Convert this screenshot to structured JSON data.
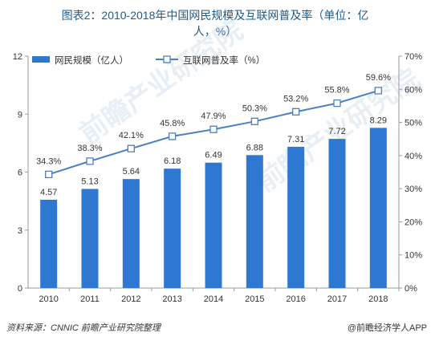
{
  "title_line1": "图表2：2010-2018年中国网民规模及互联网普及率（单位：亿",
  "title_line2": "人，%）",
  "source": "资料来源：CNNIC 前瞻产业研究院整理",
  "brand": "@前瞻经济学人APP",
  "watermark": "前瞻产业研究院",
  "chart_data": {
    "type": "bar+line",
    "categories": [
      "2010",
      "2011",
      "2012",
      "2013",
      "2014",
      "2015",
      "2016",
      "2017",
      "2018"
    ],
    "series": [
      {
        "name": "网民规模（亿人）",
        "type": "bar",
        "axis": "left",
        "values": [
          4.57,
          5.13,
          5.64,
          6.18,
          6.49,
          6.88,
          7.31,
          7.72,
          8.29
        ],
        "labels": [
          "4.57",
          "5.13",
          "5.64",
          "6.18",
          "6.49",
          "6.88",
          "7.31",
          "7.72",
          "8.29"
        ],
        "color": "#2e78d2"
      },
      {
        "name": "互联网普及率（%）",
        "type": "line",
        "axis": "right",
        "values": [
          34.3,
          38.3,
          42.1,
          45.8,
          47.9,
          50.3,
          53.2,
          55.8,
          59.6
        ],
        "labels": [
          "34.3%",
          "38.3%",
          "42.1%",
          "45.8%",
          "47.9%",
          "50.3%",
          "53.2%",
          "55.8%",
          "59.6%"
        ],
        "color": "#4a80c4"
      }
    ],
    "y_left": {
      "lim": [
        0,
        12
      ],
      "ticks": [
        "0",
        "3",
        "6",
        "9",
        "12"
      ]
    },
    "y_right": {
      "lim": [
        0,
        70
      ],
      "ticks": [
        "0%",
        "10%",
        "20%",
        "30%",
        "40%",
        "50%",
        "60%",
        "70%"
      ]
    },
    "legend_position": "top"
  }
}
